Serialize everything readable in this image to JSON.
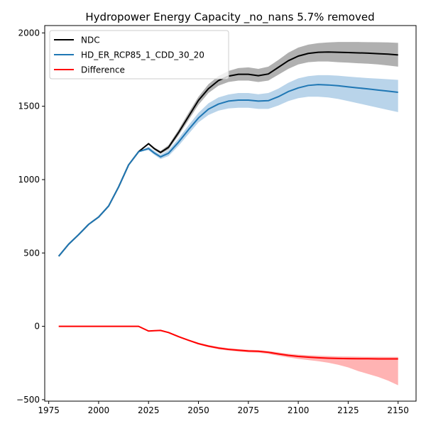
{
  "chart_data": {
    "type": "line",
    "title": "Hydropower Energy Capacity _no_nans 5.7% removed",
    "xlabel": "",
    "ylabel": "",
    "xlim": [
      1973,
      2159
    ],
    "ylim": [
      -510,
      2050
    ],
    "xticks": [
      1975,
      2000,
      2025,
      2050,
      2075,
      2100,
      2125,
      2150
    ],
    "yticks": [
      -500,
      0,
      500,
      1000,
      1500,
      2000
    ],
    "grid": false,
    "legend_position": "top-left",
    "series": [
      {
        "name": "NDC",
        "color": "#000000",
        "band_color": "#b0b0b0",
        "x": [
          1980,
          1985,
          1990,
          1995,
          2000,
          2005,
          2010,
          2015,
          2020,
          2025,
          2028,
          2031,
          2035,
          2040,
          2045,
          2050,
          2055,
          2060,
          2065,
          2070,
          2075,
          2080,
          2085,
          2090,
          2095,
          2100,
          2105,
          2110,
          2115,
          2120,
          2125,
          2130,
          2135,
          2140,
          2145,
          2150
        ],
        "values": [
          478,
          560,
          625,
          695,
          745,
          820,
          950,
          1100,
          1190,
          1245,
          1210,
          1185,
          1220,
          1320,
          1430,
          1540,
          1620,
          1675,
          1705,
          1718,
          1718,
          1708,
          1720,
          1765,
          1810,
          1842,
          1860,
          1868,
          1870,
          1868,
          1866,
          1864,
          1862,
          1858,
          1855,
          1850
        ],
        "lower": [
          478,
          560,
          625,
          695,
          745,
          820,
          950,
          1100,
          1190,
          1238,
          1202,
          1175,
          1205,
          1300,
          1405,
          1510,
          1590,
          1640,
          1665,
          1675,
          1675,
          1665,
          1675,
          1715,
          1755,
          1785,
          1800,
          1805,
          1805,
          1800,
          1797,
          1793,
          1790,
          1785,
          1778,
          1770
        ],
        "upper": [
          478,
          560,
          625,
          695,
          745,
          820,
          950,
          1100,
          1190,
          1252,
          1218,
          1195,
          1235,
          1340,
          1455,
          1565,
          1650,
          1705,
          1740,
          1760,
          1765,
          1755,
          1770,
          1815,
          1865,
          1900,
          1920,
          1930,
          1935,
          1938,
          1938,
          1938,
          1937,
          1936,
          1935,
          1932
        ]
      },
      {
        "name": "HD_ER_RCP85_1_CDD_30_20",
        "color": "#1f77b4",
        "band_color": "#b9d4ea",
        "x": [
          1980,
          1985,
          1990,
          1995,
          2000,
          2005,
          2010,
          2015,
          2020,
          2025,
          2028,
          2031,
          2035,
          2040,
          2045,
          2050,
          2055,
          2060,
          2065,
          2070,
          2075,
          2080,
          2085,
          2090,
          2095,
          2100,
          2105,
          2110,
          2115,
          2120,
          2125,
          2130,
          2135,
          2140,
          2145,
          2150
        ],
        "values": [
          478,
          560,
          625,
          695,
          745,
          820,
          950,
          1100,
          1190,
          1212,
          1180,
          1155,
          1180,
          1255,
          1340,
          1420,
          1480,
          1515,
          1535,
          1542,
          1542,
          1535,
          1538,
          1565,
          1600,
          1625,
          1642,
          1648,
          1645,
          1640,
          1632,
          1625,
          1618,
          1610,
          1603,
          1595
        ],
        "lower": [
          478,
          560,
          625,
          695,
          745,
          820,
          950,
          1100,
          1190,
          1200,
          1168,
          1140,
          1160,
          1230,
          1310,
          1390,
          1440,
          1470,
          1485,
          1490,
          1490,
          1482,
          1482,
          1505,
          1535,
          1555,
          1565,
          1565,
          1560,
          1550,
          1535,
          1520,
          1505,
          1490,
          1475,
          1460
        ],
        "upper": [
          478,
          560,
          625,
          695,
          745,
          820,
          950,
          1100,
          1190,
          1225,
          1195,
          1170,
          1200,
          1280,
          1370,
          1455,
          1520,
          1560,
          1580,
          1590,
          1590,
          1582,
          1590,
          1620,
          1660,
          1690,
          1705,
          1712,
          1712,
          1708,
          1702,
          1697,
          1692,
          1688,
          1684,
          1680
        ]
      },
      {
        "name": "Difference",
        "color": "#ff0000",
        "band_color": "#ffb3b3",
        "x": [
          1980,
          1985,
          1990,
          1995,
          2000,
          2005,
          2010,
          2015,
          2020,
          2025,
          2028,
          2031,
          2035,
          2040,
          2045,
          2050,
          2055,
          2060,
          2065,
          2070,
          2075,
          2080,
          2085,
          2090,
          2095,
          2100,
          2105,
          2110,
          2115,
          2120,
          2125,
          2130,
          2135,
          2140,
          2145,
          2150
        ],
        "values": [
          0,
          0,
          0,
          0,
          0,
          0,
          0,
          0,
          0,
          -32,
          -30,
          -28,
          -42,
          -70,
          -95,
          -118,
          -135,
          -148,
          -157,
          -163,
          -168,
          -170,
          -177,
          -188,
          -198,
          -205,
          -210,
          -214,
          -217,
          -219,
          -220,
          -221,
          -221,
          -222,
          -222,
          -222
        ],
        "lower": [
          0,
          0,
          0,
          0,
          0,
          0,
          0,
          0,
          0,
          -35,
          -33,
          -32,
          -47,
          -75,
          -100,
          -124,
          -142,
          -156,
          -165,
          -172,
          -177,
          -180,
          -188,
          -200,
          -212,
          -222,
          -230,
          -238,
          -248,
          -262,
          -280,
          -305,
          -325,
          -345,
          -370,
          -402
        ],
        "upper": [
          0,
          0,
          0,
          0,
          0,
          0,
          0,
          0,
          0,
          -29,
          -27,
          -25,
          -38,
          -65,
          -90,
          -112,
          -128,
          -140,
          -149,
          -155,
          -160,
          -162,
          -168,
          -178,
          -187,
          -193,
          -197,
          -200,
          -203,
          -205,
          -206,
          -207,
          -208,
          -208,
          -209,
          -209
        ]
      }
    ]
  }
}
